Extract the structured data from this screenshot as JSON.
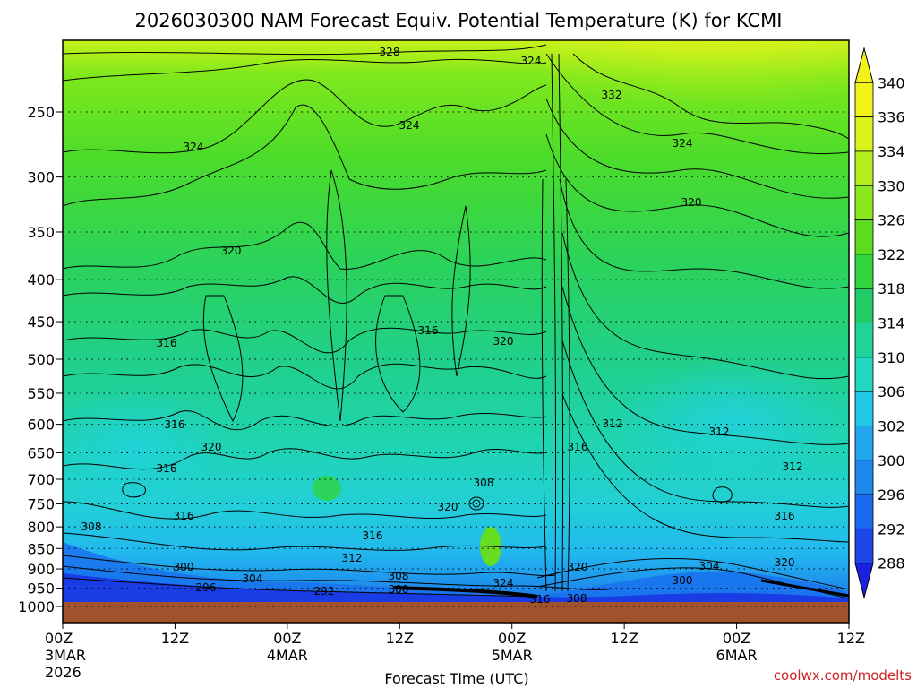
{
  "chart_data": {
    "type": "heatmap",
    "title": "2026030300 NAM Forecast Equiv. Potential Temperature (K) for KCMI",
    "xlabel": "Forecast Time (UTC)",
    "ylabel": "",
    "credit": "coolwx.com/modelts",
    "x_ticks": [
      {
        "hour": 0,
        "label": "00Z",
        "sub1": "3MAR",
        "sub2": "2026"
      },
      {
        "hour": 12,
        "label": "12Z",
        "sub1": "",
        "sub2": ""
      },
      {
        "hour": 24,
        "label": "00Z",
        "sub1": "4MAR",
        "sub2": ""
      },
      {
        "hour": 36,
        "label": "12Z",
        "sub1": "",
        "sub2": ""
      },
      {
        "hour": 48,
        "label": "00Z",
        "sub1": "5MAR",
        "sub2": ""
      },
      {
        "hour": 60,
        "label": "12Z",
        "sub1": "",
        "sub2": ""
      },
      {
        "hour": 72,
        "label": "00Z",
        "sub1": "6MAR",
        "sub2": ""
      },
      {
        "hour": 84,
        "label": "12Z",
        "sub1": "",
        "sub2": ""
      }
    ],
    "xlim_hours": [
      0,
      84
    ],
    "y_ticks_hpa": [
      "250",
      "300",
      "350",
      "400",
      "450",
      "500",
      "550",
      "600",
      "650",
      "700",
      "750",
      "800",
      "850",
      "900",
      "950",
      "1000"
    ],
    "ylim_hpa": [
      200,
      1000
    ],
    "y_scale": "log",
    "colorbar": {
      "levels": [
        "340",
        "336",
        "334",
        "330",
        "326",
        "322",
        "318",
        "314",
        "310",
        "306",
        "302",
        "300",
        "296",
        "292",
        "288"
      ],
      "colors": [
        "#f2f219",
        "#d9f21a",
        "#b3ee1c",
        "#8ae81c",
        "#5cdd1e",
        "#33d640",
        "#22cc66",
        "#1fd39a",
        "#22d6c4",
        "#22c8e8",
        "#22a6ee",
        "#1f88ec",
        "#1a6af0",
        "#1c46e8",
        "#1a22e0"
      ]
    },
    "contour_labels": [
      "328",
      "324",
      "332",
      "324",
      "324",
      "324",
      "320",
      "320",
      "316",
      "316",
      "320",
      "316",
      "320",
      "312",
      "312",
      "316",
      "316",
      "308",
      "312",
      "320",
      "316",
      "316",
      "308",
      "312",
      "300",
      "304",
      "296",
      "292",
      "308",
      "300",
      "324",
      "316",
      "308",
      "320",
      "304",
      "300",
      "320",
      "316"
    ],
    "ground_color": "#a0522d"
  }
}
